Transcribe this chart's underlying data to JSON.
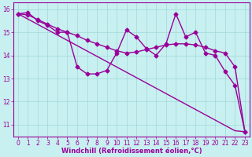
{
  "title": "",
  "xlabel": "Windchill (Refroidissement éolien,°C)",
  "ylabel": "",
  "bg_color": "#c8f0f0",
  "line_color": "#990099",
  "grid_color": "#a0d8d8",
  "xlim": [
    -0.5,
    23.5
  ],
  "ylim": [
    10.5,
    16.3
  ],
  "xticks": [
    0,
    1,
    2,
    3,
    4,
    5,
    6,
    7,
    8,
    9,
    10,
    11,
    12,
    13,
    14,
    15,
    16,
    17,
    18,
    19,
    20,
    21,
    22,
    23
  ],
  "yticks": [
    11,
    12,
    13,
    14,
    15,
    16
  ],
  "line1": {
    "x": [
      0,
      1,
      2,
      3,
      4,
      5,
      6,
      7,
      8,
      9,
      10,
      11,
      12,
      13,
      14,
      15,
      16,
      17,
      18,
      19,
      20,
      21,
      22,
      23
    ],
    "y": [
      15.8,
      15.85,
      15.5,
      15.3,
      15.0,
      15.0,
      13.5,
      13.2,
      13.2,
      13.35,
      14.1,
      15.1,
      14.8,
      14.3,
      14.0,
      14.5,
      15.8,
      14.8,
      15.0,
      14.1,
      14.0,
      13.3,
      12.7,
      10.7
    ]
  },
  "line2": {
    "x": [
      0,
      1,
      2,
      3,
      4,
      5,
      6,
      7,
      8,
      9,
      10,
      11,
      12,
      13,
      14,
      15,
      16,
      17,
      18,
      19,
      20,
      21,
      22,
      23
    ],
    "y": [
      15.8,
      15.75,
      15.55,
      15.35,
      15.15,
      15.0,
      14.85,
      14.65,
      14.5,
      14.35,
      14.2,
      14.1,
      14.15,
      14.25,
      14.35,
      14.45,
      14.5,
      14.5,
      14.45,
      14.35,
      14.2,
      14.1,
      13.5,
      10.7
    ]
  },
  "line3": {
    "x": [
      0,
      1,
      2,
      3,
      4,
      5,
      6,
      7,
      8,
      9,
      10,
      11,
      12,
      13,
      14,
      15,
      16,
      17,
      18,
      19,
      20,
      21,
      22,
      23
    ],
    "y": [
      15.8,
      15.57,
      15.34,
      15.11,
      14.88,
      14.65,
      14.42,
      14.19,
      13.96,
      13.73,
      13.5,
      13.27,
      13.04,
      12.81,
      12.58,
      12.35,
      12.12,
      11.89,
      11.66,
      11.43,
      11.2,
      10.97,
      10.74,
      10.7
    ]
  },
  "marker": "D",
  "markersize": 2.5,
  "linewidth": 1.0
}
